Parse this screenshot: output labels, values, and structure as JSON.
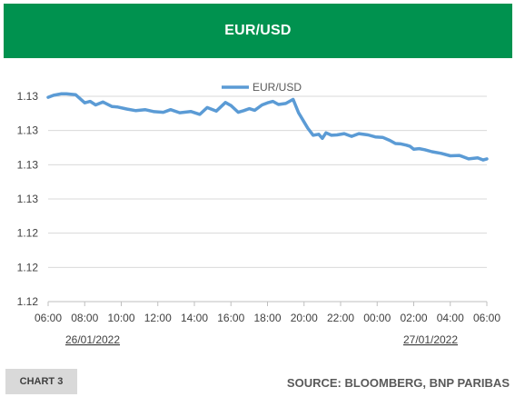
{
  "header": {
    "title": "EUR/USD"
  },
  "footer": {
    "chart_label": "CHART 3",
    "source": "SOURCE: BLOOMBERG, BNP PARIBAS"
  },
  "colors": {
    "header_bg": "#00924f",
    "series": "#5b9bd5",
    "grid": "#d9d9d9"
  },
  "chart_data": {
    "type": "line",
    "title": "",
    "xlabel": "",
    "ylabel": "",
    "legend": "top-center",
    "grid": true,
    "xlim": [
      0,
      24
    ],
    "ylim": [
      1.12,
      1.13
    ],
    "y_ticks": [
      "1.12",
      "1.12",
      "1.12",
      "1.13",
      "1.13",
      "1.13",
      "1.13"
    ],
    "x_tick_positions": [
      0,
      2,
      4,
      6,
      8,
      10,
      12,
      14,
      16,
      18,
      20,
      22,
      24
    ],
    "x_ticks": [
      "06:00",
      "08:00",
      "10:00",
      "12:00",
      "14:00",
      "16:00",
      "18:00",
      "20:00",
      "22:00",
      "00:00",
      "02:00",
      "04:00",
      "06:00"
    ],
    "date_labels": [
      "26/01/2022",
      "27/01/2022"
    ],
    "series": [
      {
        "name": "EUR/USD",
        "x": [
          0,
          0.3,
          0.7,
          1.0,
          1.5,
          2.0,
          2.3,
          2.6,
          3.0,
          3.5,
          3.8,
          4.3,
          4.8,
          5.3,
          5.8,
          6.3,
          6.7,
          7.2,
          7.8,
          8.3,
          8.7,
          9.2,
          9.7,
          10.0,
          10.4,
          10.7,
          11.0,
          11.3,
          11.7,
          12.0,
          12.3,
          12.6,
          13.0,
          13.4,
          13.7,
          14.0,
          14.2,
          14.5,
          14.8,
          15.0,
          15.2,
          15.5,
          15.8,
          16.2,
          16.6,
          17.0,
          17.5,
          17.9,
          18.3,
          18.7,
          19.0,
          19.3,
          19.6,
          19.8,
          20.0,
          20.3,
          20.6,
          21.0,
          21.5,
          22.0,
          22.5,
          23.0,
          23.5,
          23.8,
          24.0
        ],
        "y": [
          1.12995,
          1.13005,
          1.13012,
          1.13012,
          1.13008,
          1.12968,
          1.12975,
          1.12958,
          1.12972,
          1.1295,
          1.12948,
          1.12938,
          1.1293,
          1.12935,
          1.12925,
          1.12922,
          1.12935,
          1.1292,
          1.12926,
          1.12912,
          1.12945,
          1.12928,
          1.1297,
          1.12955,
          1.12922,
          1.1293,
          1.1294,
          1.12932,
          1.12958,
          1.12968,
          1.12975,
          1.1296,
          1.12965,
          1.12985,
          1.1292,
          1.12875,
          1.12845,
          1.1281,
          1.12815,
          1.12795,
          1.12822,
          1.1281,
          1.12812,
          1.12818,
          1.12805,
          1.12818,
          1.12812,
          1.12802,
          1.128,
          1.12785,
          1.1277,
          1.12768,
          1.12762,
          1.12756,
          1.12742,
          1.12745,
          1.1274,
          1.1273,
          1.12722,
          1.1271,
          1.12712,
          1.12695,
          1.127,
          1.1269,
          1.12695
        ]
      }
    ]
  }
}
